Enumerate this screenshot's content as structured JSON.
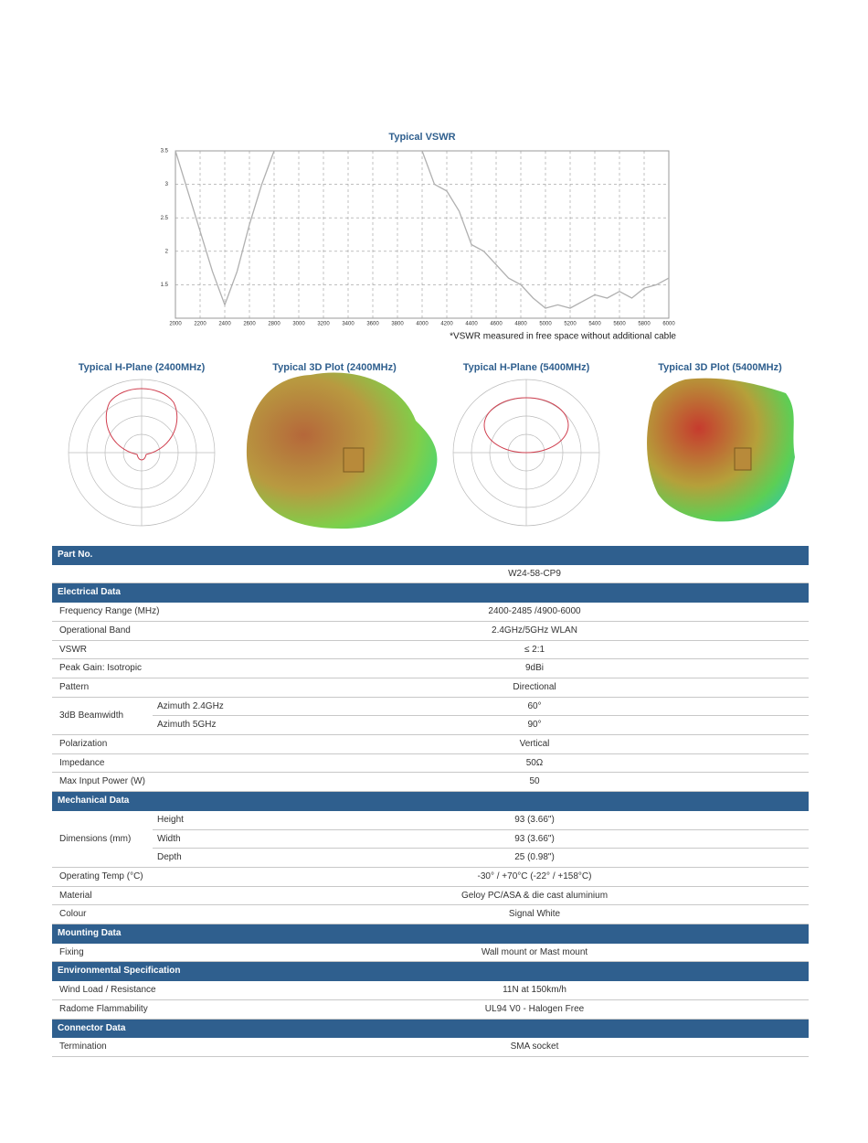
{
  "chart_data": {
    "type": "line",
    "title": "Typical VSWR",
    "footnote": "*VSWR measured in free space without additional cable",
    "x": [
      2000,
      2100,
      2200,
      2300,
      2400,
      2500,
      2600,
      2700,
      2800,
      2900,
      3000,
      3100,
      3200,
      3300,
      3400,
      3500,
      3600,
      3700,
      3800,
      3900,
      4000,
      4100,
      4200,
      4300,
      4400,
      4500,
      4600,
      4700,
      4800,
      4900,
      5000,
      5100,
      5200,
      5300,
      5400,
      5500,
      5600,
      5700,
      5800,
      5900,
      6000
    ],
    "values": [
      3.5,
      2.9,
      2.3,
      1.7,
      1.2,
      1.7,
      2.4,
      3.0,
      3.5,
      null,
      null,
      null,
      null,
      null,
      null,
      null,
      null,
      null,
      null,
      null,
      3.5,
      3.0,
      2.9,
      2.6,
      2.1,
      2.0,
      1.8,
      1.6,
      1.5,
      1.3,
      1.15,
      1.2,
      1.15,
      1.25,
      1.35,
      1.3,
      1.4,
      1.3,
      1.45,
      1.5,
      1.6
    ],
    "color": "#b0b0b0",
    "xlim": [
      2000,
      6000
    ],
    "xticks": [
      2000,
      2200,
      2400,
      2600,
      2800,
      3000,
      3200,
      3400,
      3600,
      3800,
      4000,
      4200,
      4400,
      4600,
      4800,
      5000,
      5200,
      5400,
      5600,
      5800,
      6000
    ],
    "ylim": [
      1,
      3.5
    ],
    "yticks": [
      1.5,
      2,
      2.5,
      3,
      3.5
    ],
    "grid": true
  },
  "patterns": [
    {
      "title": "Typical H-Plane (2400MHz)"
    },
    {
      "title": "Typical 3D Plot (2400MHz)"
    },
    {
      "title": "Typical H-Plane (5400MHz)"
    },
    {
      "title": "Typical 3D Plot (5400MHz)"
    }
  ],
  "table": {
    "sections": [
      {
        "title": "Part No.",
        "rows": [
          {
            "value": "W24-58-CP9"
          }
        ]
      },
      {
        "title": "Electrical Data",
        "rows": [
          {
            "label": "Frequency Range (MHz)",
            "value": "2400-2485 /4900-6000"
          },
          {
            "label": "Operational Band",
            "value": "2.4GHz/5GHz WLAN"
          },
          {
            "label": "VSWR",
            "value": "≤ 2:1"
          },
          {
            "label": "Peak Gain: Isotropic",
            "value": "9dBi"
          },
          {
            "label": "Pattern",
            "value": "Directional"
          },
          {
            "label": "3dB Beamwidth",
            "items": [
              {
                "label": "Azimuth 2.4GHz",
                "value": "60°"
              },
              {
                "label": "Azimuth 5GHz",
                "value": "90°"
              }
            ]
          },
          {
            "label": "Polarization",
            "value": "Vertical"
          },
          {
            "label": "Impedance",
            "value": "50Ω"
          },
          {
            "label": "Max Input Power (W)",
            "value": "50"
          }
        ]
      },
      {
        "title": "Mechanical Data",
        "rows": [
          {
            "label": "Dimensions (mm)",
            "items": [
              {
                "label": "Height",
                "value": "93 (3.66\")"
              },
              {
                "label": "Width",
                "value": "93 (3.66\")"
              },
              {
                "label": "Depth",
                "value": "25 (0.98\")"
              }
            ]
          },
          {
            "label": "Operating Temp (°C)",
            "value": "-30° / +70°C (-22° / +158°C)"
          },
          {
            "label": "Material",
            "value": "Geloy PC/ASA & die cast aluminium"
          },
          {
            "label": "Colour",
            "value": "Signal White"
          }
        ]
      },
      {
        "title": "Mounting Data",
        "rows": [
          {
            "label": "Fixing",
            "value": "Wall mount or Mast mount"
          }
        ]
      },
      {
        "title": "Environmental Specification",
        "rows": [
          {
            "label": "Wind Load / Resistance",
            "value": "11N at 150km/h"
          },
          {
            "label": "Radome Flammability",
            "value": "UL94 V0 - Halogen Free"
          }
        ]
      },
      {
        "title": "Connector Data",
        "rows": [
          {
            "label": "Termination",
            "value": "SMA socket"
          }
        ]
      }
    ]
  }
}
